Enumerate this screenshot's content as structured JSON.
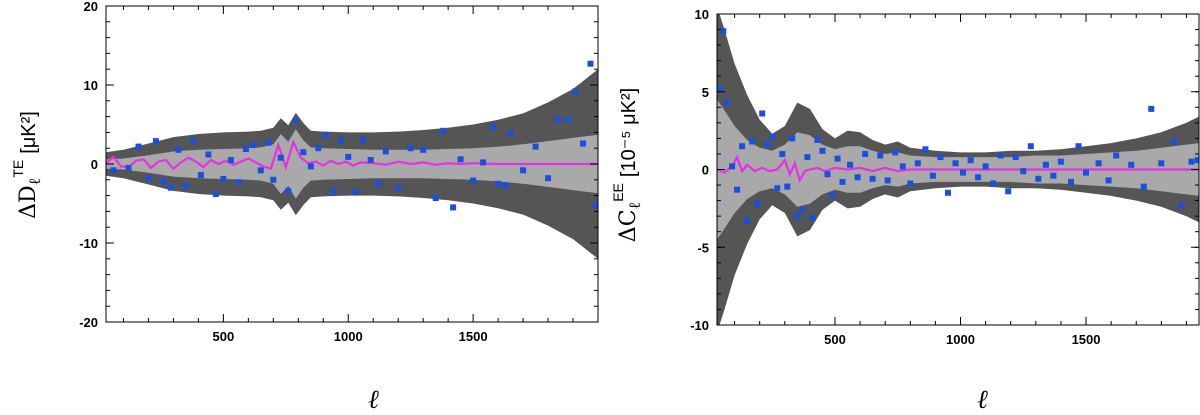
{
  "chart_data": [
    {
      "type": "scatter",
      "panel": "left",
      "ylabel_main": "ΔD",
      "ylabel_sub": "ℓ",
      "ylabel_sup": "TE",
      "ylabel_unit": "[μK²]",
      "xlabel": "ℓ",
      "xlim": [
        30,
        2000
      ],
      "ylim": [
        -20,
        20
      ],
      "xticks": [
        500,
        1000,
        1500
      ],
      "yticks": [
        -20,
        -10,
        0,
        10,
        20
      ],
      "colors": {
        "outer_band": "#555555",
        "inner_band": "#a9a9a9",
        "line": "#e830e8",
        "points": "#1a4fe0"
      },
      "band_x": [
        30,
        100,
        200,
        300,
        400,
        500,
        600,
        650,
        700,
        730,
        760,
        790,
        820,
        850,
        900,
        1000,
        1100,
        1200,
        1300,
        1400,
        1500,
        1600,
        1700,
        1800,
        1900,
        2000
      ],
      "band_outer": [
        1.5,
        1.8,
        2.6,
        3.4,
        3.8,
        4.0,
        4.1,
        4.2,
        4.6,
        5.8,
        4.9,
        6.5,
        5.2,
        4.2,
        4.1,
        4.0,
        4.0,
        4.1,
        4.3,
        4.6,
        5.0,
        5.6,
        6.4,
        7.8,
        9.5,
        12.0
      ],
      "band_inner": [
        0.6,
        0.7,
        1.1,
        1.6,
        1.8,
        1.9,
        2.0,
        2.1,
        2.5,
        3.8,
        2.8,
        4.4,
        3.0,
        2.1,
        2.0,
        1.9,
        1.8,
        1.8,
        1.8,
        1.9,
        2.0,
        2.2,
        2.5,
        2.9,
        3.3,
        3.7
      ],
      "line_x": [
        30,
        60,
        90,
        120,
        150,
        180,
        210,
        240,
        270,
        300,
        330,
        360,
        390,
        420,
        450,
        480,
        510,
        540,
        570,
        600,
        630,
        660,
        690,
        720,
        750,
        780,
        810,
        840,
        870,
        900,
        930,
        960,
        990,
        1020,
        1050,
        1100,
        1150,
        1200,
        1250,
        1300,
        1350,
        1400,
        1450,
        1500,
        1600,
        1700,
        1800,
        1900,
        2000
      ],
      "line_y": [
        0.1,
        0.9,
        -0.3,
        -0.4,
        0.4,
        0.6,
        -0.5,
        0.3,
        0.5,
        -0.6,
        0.2,
        0.8,
        0.3,
        -0.4,
        0.5,
        0.0,
        0.4,
        -0.1,
        0.3,
        0.7,
        0.2,
        -0.3,
        -0.6,
        2.4,
        -0.4,
        2.8,
        0.8,
        0.1,
        0.3,
        -0.2,
        0.4,
        0.0,
        0.3,
        -0.2,
        0.2,
        0.1,
        -0.1,
        0.3,
        0.0,
        0.2,
        -0.1,
        0.1,
        0.0,
        0.1,
        0.0,
        0.0,
        0.0,
        0.0,
        0.0
      ],
      "points": [
        [
          60,
          -0.8
        ],
        [
          120,
          -0.5
        ],
        [
          160,
          2.2
        ],
        [
          200,
          -1.8
        ],
        [
          230,
          2.9
        ],
        [
          260,
          -2.2
        ],
        [
          290,
          -3.0
        ],
        [
          320,
          1.8
        ],
        [
          350,
          -2.8
        ],
        [
          380,
          3.0
        ],
        [
          410,
          -1.4
        ],
        [
          440,
          1.2
        ],
        [
          470,
          -3.8
        ],
        [
          500,
          -1.9
        ],
        [
          530,
          0.5
        ],
        [
          560,
          -2.3
        ],
        [
          590,
          1.9
        ],
        [
          620,
          2.4
        ],
        [
          650,
          -0.8
        ],
        [
          680,
          2.7
        ],
        [
          700,
          -2.0
        ],
        [
          730,
          0.8
        ],
        [
          760,
          -3.4
        ],
        [
          790,
          5.5
        ],
        [
          820,
          1.5
        ],
        [
          850,
          -0.3
        ],
        [
          880,
          2.0
        ],
        [
          910,
          3.7
        ],
        [
          940,
          -3.5
        ],
        [
          970,
          3.0
        ],
        [
          1000,
          0.9
        ],
        [
          1030,
          -3.6
        ],
        [
          1060,
          3.1
        ],
        [
          1090,
          0.5
        ],
        [
          1120,
          -2.5
        ],
        [
          1150,
          1.6
        ],
        [
          1200,
          -3.0
        ],
        [
          1250,
          2.0
        ],
        [
          1300,
          1.8
        ],
        [
          1350,
          -4.3
        ],
        [
          1380,
          4.2
        ],
        [
          1420,
          -5.5
        ],
        [
          1450,
          0.6
        ],
        [
          1500,
          -2.1
        ],
        [
          1540,
          0.2
        ],
        [
          1580,
          4.7
        ],
        [
          1600,
          -2.5
        ],
        [
          1630,
          -2.7
        ],
        [
          1650,
          3.9
        ],
        [
          1700,
          -0.8
        ],
        [
          1750,
          2.2
        ],
        [
          1800,
          -1.8
        ],
        [
          1840,
          5.6
        ],
        [
          1880,
          5.6
        ],
        [
          1910,
          9.2
        ],
        [
          1940,
          2.6
        ],
        [
          1970,
          12.7
        ],
        [
          1990,
          -5.2
        ]
      ]
    },
    {
      "type": "scatter",
      "panel": "right",
      "ylabel_main": "ΔC",
      "ylabel_sub": "ℓ",
      "ylabel_sup": "EE",
      "ylabel_unit": "[10⁻⁵ μK²]",
      "xlabel": "ℓ",
      "xlim": [
        30,
        1950
      ],
      "ylim": [
        -10,
        10
      ],
      "xticks": [
        500,
        1000,
        1500
      ],
      "yticks": [
        -10,
        -5,
        0,
        5,
        10
      ],
      "colors": {
        "outer_band": "#555555",
        "inner_band": "#a9a9a9",
        "line": "#e830e8",
        "points": "#1a4fe0"
      },
      "band_x": [
        30,
        60,
        100,
        150,
        200,
        250,
        300,
        350,
        400,
        450,
        500,
        550,
        600,
        650,
        700,
        750,
        800,
        900,
        1000,
        1100,
        1200,
        1300,
        1400,
        1500,
        1600,
        1700,
        1800,
        1900,
        1950
      ],
      "band_outer": [
        10.5,
        9.0,
        6.8,
        4.8,
        3.2,
        2.3,
        2.8,
        4.3,
        3.9,
        2.6,
        2.0,
        2.5,
        2.4,
        1.9,
        1.6,
        1.8,
        1.4,
        1.2,
        1.1,
        1.1,
        1.2,
        1.2,
        1.3,
        1.5,
        1.7,
        2.0,
        2.4,
        3.0,
        3.4
      ],
      "band_inner": [
        4.5,
        3.8,
        2.8,
        1.9,
        1.4,
        1.2,
        1.6,
        2.4,
        2.2,
        1.6,
        1.3,
        1.5,
        1.5,
        1.2,
        1.0,
        1.1,
        0.9,
        0.8,
        0.8,
        0.8,
        0.8,
        0.9,
        0.9,
        1.0,
        1.1,
        1.2,
        1.4,
        1.6,
        1.7
      ],
      "line_x": [
        30,
        60,
        90,
        110,
        130,
        150,
        180,
        210,
        240,
        270,
        300,
        320,
        340,
        360,
        380,
        400,
        430,
        460,
        500,
        550,
        600,
        650,
        700,
        750,
        800,
        900,
        1000,
        1200,
        1400,
        1600,
        1800,
        1950
      ],
      "line_y": [
        0.0,
        -0.2,
        0.2,
        0.8,
        -0.1,
        0.3,
        -0.1,
        0.1,
        -0.1,
        0.0,
        0.6,
        -0.3,
        0.4,
        -0.7,
        -0.1,
        0.0,
        0.1,
        -0.1,
        0.1,
        0.0,
        0.1,
        -0.1,
        0.1,
        -0.1,
        0.0,
        0.0,
        0.0,
        0.0,
        0.0,
        0.0,
        0.0,
        0.0
      ],
      "points": [
        [
          40,
          5.2
        ],
        [
          55,
          8.9
        ],
        [
          70,
          4.3
        ],
        [
          90,
          0.2
        ],
        [
          110,
          -1.3
        ],
        [
          130,
          1.5
        ],
        [
          150,
          -3.3
        ],
        [
          170,
          1.8
        ],
        [
          190,
          -2.2
        ],
        [
          210,
          3.6
        ],
        [
          230,
          1.6
        ],
        [
          250,
          2.1
        ],
        [
          270,
          -1.2
        ],
        [
          290,
          1.0
        ],
        [
          310,
          -1.1
        ],
        [
          330,
          2.0
        ],
        [
          350,
          -3.0
        ],
        [
          370,
          -2.6
        ],
        [
          390,
          0.8
        ],
        [
          410,
          -3.1
        ],
        [
          430,
          1.9
        ],
        [
          450,
          1.2
        ],
        [
          470,
          -0.3
        ],
        [
          490,
          -1.7
        ],
        [
          510,
          0.7
        ],
        [
          530,
          -0.8
        ],
        [
          560,
          0.3
        ],
        [
          590,
          -0.5
        ],
        [
          620,
          1.0
        ],
        [
          650,
          -0.6
        ],
        [
          680,
          0.9
        ],
        [
          710,
          -0.7
        ],
        [
          740,
          1.1
        ],
        [
          770,
          0.2
        ],
        [
          800,
          -0.9
        ],
        [
          830,
          0.4
        ],
        [
          860,
          1.3
        ],
        [
          890,
          -0.4
        ],
        [
          920,
          0.8
        ],
        [
          950,
          -1.5
        ],
        [
          980,
          0.4
        ],
        [
          1010,
          -0.2
        ],
        [
          1040,
          0.6
        ],
        [
          1070,
          -0.5
        ],
        [
          1100,
          0.2
        ],
        [
          1130,
          -0.9
        ],
        [
          1160,
          0.9
        ],
        [
          1190,
          -1.4
        ],
        [
          1220,
          0.8
        ],
        [
          1250,
          -0.1
        ],
        [
          1280,
          1.5
        ],
        [
          1310,
          -0.6
        ],
        [
          1340,
          0.3
        ],
        [
          1370,
          -0.4
        ],
        [
          1400,
          0.5
        ],
        [
          1440,
          -0.8
        ],
        [
          1470,
          1.5
        ],
        [
          1500,
          -0.2
        ],
        [
          1550,
          0.4
        ],
        [
          1590,
          -0.7
        ],
        [
          1620,
          0.9
        ],
        [
          1680,
          0.3
        ],
        [
          1730,
          -1.1
        ],
        [
          1760,
          3.9
        ],
        [
          1800,
          0.4
        ],
        [
          1850,
          1.8
        ],
        [
          1880,
          -2.3
        ],
        [
          1920,
          0.5
        ],
        [
          1945,
          0.6
        ]
      ]
    }
  ]
}
